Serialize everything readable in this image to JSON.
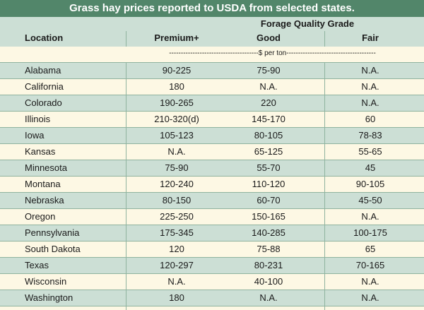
{
  "title": "Grass hay prices reported to USDA from selected states.",
  "group_header": "Forage Quality Grade",
  "columns": {
    "location": "Location",
    "premium": "Premium+",
    "good": "Good",
    "fair": "Fair"
  },
  "unit_label": "--------------------------------------$ per ton--------------------------------------",
  "rows": [
    {
      "location": "Alabama",
      "premium": "90-225",
      "good": "75-90",
      "fair": "N.A."
    },
    {
      "location": "California",
      "premium": "180",
      "good": "N.A.",
      "fair": "N.A."
    },
    {
      "location": "Colorado",
      "premium": "190-265",
      "good": "220",
      "fair": "N.A."
    },
    {
      "location": "Illinois",
      "premium": "210-320(d)",
      "good": "145-170",
      "fair": "60"
    },
    {
      "location": "Iowa",
      "premium": "105-123",
      "good": "80-105",
      "fair": "78-83"
    },
    {
      "location": "Kansas",
      "premium": "N.A.",
      "good": "65-125",
      "fair": "55-65"
    },
    {
      "location": "Minnesota",
      "premium": "75-90",
      "good": "55-70",
      "fair": "45"
    },
    {
      "location": "Montana",
      "premium": "120-240",
      "good": "110-120",
      "fair": "90-105"
    },
    {
      "location": "Nebraska",
      "premium": "80-150",
      "good": "60-70",
      "fair": "45-50"
    },
    {
      "location": "Oregon",
      "premium": "225-250",
      "good": "150-165",
      "fair": "N.A."
    },
    {
      "location": "Pennsylvania",
      "premium": "175-345",
      "good": "140-285",
      "fair": "100-175"
    },
    {
      "location": "South Dakota",
      "premium": "120",
      "good": "75-88",
      "fair": "65"
    },
    {
      "location": "Texas",
      "premium": "120-297",
      "good": "80-231",
      "fair": "70-165"
    },
    {
      "location": "Wisconsin",
      "premium": "N.A.",
      "good": "40-100",
      "fair": "N.A."
    },
    {
      "location": "Washington",
      "premium": "180",
      "good": "N.A.",
      "fair": "N.A."
    }
  ],
  "colors": {
    "title_bg": "#52866a",
    "shaded_row": "#ccdfd5",
    "light_row": "#fdf8e4",
    "rule": "#8fb39f"
  }
}
